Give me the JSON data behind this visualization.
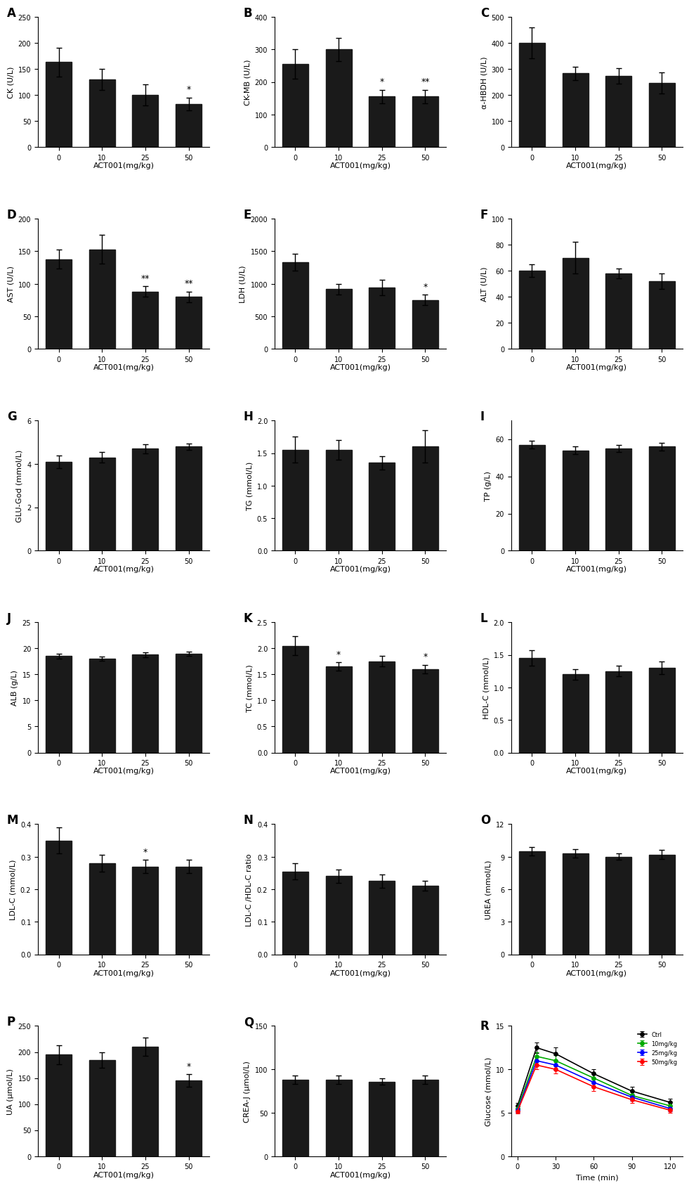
{
  "panels": {
    "A": {
      "title": "A",
      "ylabel": "CK (U/L)",
      "xlabel": "ACT001(mg/kg)",
      "categories": [
        "0",
        "10",
        "25",
        "50"
      ],
      "values": [
        163,
        130,
        100,
        83
      ],
      "errors": [
        28,
        20,
        20,
        12
      ],
      "ylim": [
        0,
        250
      ],
      "yticks": [
        0,
        50,
        100,
        150,
        200,
        250
      ],
      "sig": [
        "",
        "",
        "",
        "*"
      ]
    },
    "B": {
      "title": "B",
      "ylabel": "CK-MB (U/L)",
      "xlabel": "ACT001(mg/kg)",
      "categories": [
        "0",
        "10",
        "25",
        "50"
      ],
      "values": [
        255,
        300,
        155,
        155
      ],
      "errors": [
        45,
        35,
        20,
        20
      ],
      "ylim": [
        0,
        400
      ],
      "yticks": [
        0,
        100,
        200,
        300,
        400
      ],
      "sig": [
        "",
        "",
        "*",
        "**"
      ]
    },
    "C": {
      "title": "C",
      "ylabel": "α-HBDH (U/L)",
      "xlabel": "ACT001(mg/kg)",
      "categories": [
        "0",
        "10",
        "25",
        "50"
      ],
      "values": [
        400,
        283,
        273,
        247
      ],
      "errors": [
        60,
        25,
        30,
        40
      ],
      "ylim": [
        0,
        500
      ],
      "yticks": [
        0,
        100,
        200,
        300,
        400,
        500
      ],
      "sig": [
        "",
        "",
        "",
        ""
      ]
    },
    "D": {
      "title": "D",
      "ylabel": "AST (U/L)",
      "xlabel": "ACT001(mg/kg)",
      "categories": [
        "0",
        "10",
        "25",
        "50"
      ],
      "values": [
        138,
        153,
        88,
        80
      ],
      "errors": [
        15,
        22,
        8,
        8
      ],
      "ylim": [
        0,
        200
      ],
      "yticks": [
        0,
        50,
        100,
        150,
        200
      ],
      "sig": [
        "",
        "",
        "**",
        "**"
      ]
    },
    "E": {
      "title": "E",
      "ylabel": "LDH (U/L)",
      "xlabel": "ACT001(mg/kg)",
      "categories": [
        "0",
        "10",
        "25",
        "50"
      ],
      "values": [
        1330,
        920,
        940,
        750
      ],
      "errors": [
        130,
        80,
        120,
        80
      ],
      "ylim": [
        0,
        2000
      ],
      "yticks": [
        0,
        500,
        1000,
        1500,
        2000
      ],
      "sig": [
        "",
        "",
        "",
        "*"
      ]
    },
    "F": {
      "title": "F",
      "ylabel": "ALT (U/L)",
      "xlabel": "ACT001(mg/kg)",
      "categories": [
        "0",
        "10",
        "25",
        "50"
      ],
      "values": [
        60,
        70,
        58,
        52
      ],
      "errors": [
        5,
        12,
        4,
        6
      ],
      "ylim": [
        0,
        100
      ],
      "yticks": [
        0,
        20,
        40,
        60,
        80,
        100
      ],
      "sig": [
        "",
        "",
        "",
        ""
      ]
    },
    "G": {
      "title": "G",
      "ylabel": "GLU-God (mmol/L)",
      "xlabel": "ACT001(mg/kg)",
      "categories": [
        "0",
        "10",
        "25",
        "50"
      ],
      "values": [
        4.1,
        4.3,
        4.7,
        4.8
      ],
      "errors": [
        0.3,
        0.25,
        0.2,
        0.15
      ],
      "ylim": [
        0,
        6
      ],
      "yticks": [
        0,
        2,
        4,
        6
      ],
      "sig": [
        "",
        "",
        "",
        ""
      ]
    },
    "H": {
      "title": "H",
      "ylabel": "TG (mmol/L)",
      "xlabel": "ACT001(mg/kg)",
      "categories": [
        "0",
        "10",
        "25",
        "50"
      ],
      "values": [
        1.55,
        1.55,
        1.35,
        1.6
      ],
      "errors": [
        0.2,
        0.15,
        0.1,
        0.25
      ],
      "ylim": [
        0,
        2.0
      ],
      "yticks": [
        0,
        0.5,
        1.0,
        1.5,
        2.0
      ],
      "sig": [
        "",
        "",
        "",
        ""
      ]
    },
    "I": {
      "title": "I",
      "ylabel": "TP (g/L)",
      "xlabel": "ACT001(mg/kg)",
      "categories": [
        "0",
        "10",
        "25",
        "50"
      ],
      "values": [
        57,
        54,
        55,
        56
      ],
      "errors": [
        2,
        2,
        2,
        2
      ],
      "ylim": [
        0,
        70
      ],
      "yticks": [
        0,
        20,
        40,
        60
      ],
      "sig": [
        "",
        "",
        "",
        ""
      ]
    },
    "J": {
      "title": "J",
      "ylabel": "ALB (g/L)",
      "xlabel": "ACT001(mg/kg)",
      "categories": [
        "0",
        "10",
        "25",
        "50"
      ],
      "values": [
        18.5,
        18.0,
        18.8,
        19.0
      ],
      "errors": [
        0.5,
        0.4,
        0.5,
        0.4
      ],
      "ylim": [
        0,
        25
      ],
      "yticks": [
        0,
        5,
        10,
        15,
        20,
        25
      ],
      "sig": [
        "",
        "",
        "",
        ""
      ]
    },
    "K": {
      "title": "K",
      "ylabel": "TC (mmol/L)",
      "xlabel": "ACT001(mg/kg)",
      "categories": [
        "0",
        "10",
        "25",
        "50"
      ],
      "values": [
        2.05,
        1.65,
        1.75,
        1.6
      ],
      "errors": [
        0.18,
        0.08,
        0.1,
        0.08
      ],
      "ylim": [
        0,
        2.5
      ],
      "yticks": [
        0,
        0.5,
        1.0,
        1.5,
        2.0,
        2.5
      ],
      "sig": [
        "",
        "*",
        "",
        "*"
      ]
    },
    "L": {
      "title": "L",
      "ylabel": "HDL-C (mmol/L)",
      "xlabel": "ACT001(mg/kg)",
      "categories": [
        "0",
        "10",
        "25",
        "50"
      ],
      "values": [
        1.45,
        1.2,
        1.25,
        1.3
      ],
      "errors": [
        0.12,
        0.08,
        0.08,
        0.1
      ],
      "ylim": [
        0,
        2.0
      ],
      "yticks": [
        0,
        0.5,
        1.0,
        1.5,
        2.0
      ],
      "sig": [
        "",
        "",
        "",
        ""
      ]
    },
    "M": {
      "title": "M",
      "ylabel": "LDL-C (mmol/L)",
      "xlabel": "ACT001(mg/kg)",
      "categories": [
        "0",
        "10",
        "25",
        "50"
      ],
      "values": [
        0.35,
        0.28,
        0.27,
        0.27
      ],
      "errors": [
        0.04,
        0.025,
        0.02,
        0.02
      ],
      "ylim": [
        0,
        0.4
      ],
      "yticks": [
        0,
        0.1,
        0.2,
        0.3,
        0.4
      ],
      "sig": [
        "",
        "",
        "*",
        ""
      ]
    },
    "N": {
      "title": "N",
      "ylabel": "LDL-C /HDL-C ratio",
      "xlabel": "ACT001(mg/kg)",
      "categories": [
        "0",
        "10",
        "25",
        "50"
      ],
      "values": [
        0.255,
        0.24,
        0.225,
        0.21
      ],
      "errors": [
        0.025,
        0.02,
        0.02,
        0.015
      ],
      "ylim": [
        0,
        0.4
      ],
      "yticks": [
        0,
        0.1,
        0.2,
        0.3,
        0.4
      ],
      "sig": [
        "",
        "",
        "",
        ""
      ]
    },
    "O": {
      "title": "O",
      "ylabel": "UREA (mmol/L)",
      "xlabel": "ACT001(mg/kg)",
      "categories": [
        "0",
        "10",
        "25",
        "50"
      ],
      "values": [
        9.5,
        9.3,
        9.0,
        9.2
      ],
      "errors": [
        0.4,
        0.4,
        0.3,
        0.4
      ],
      "ylim": [
        0,
        12
      ],
      "yticks": [
        0,
        3,
        6,
        9,
        12
      ],
      "sig": [
        "",
        "",
        "",
        ""
      ]
    },
    "P": {
      "title": "P",
      "ylabel": "UA (μmol/L)",
      "xlabel": "ACT001(mg/kg)",
      "categories": [
        "0",
        "10",
        "25",
        "50"
      ],
      "values": [
        195,
        185,
        210,
        145
      ],
      "errors": [
        18,
        15,
        18,
        12
      ],
      "ylim": [
        0,
        250
      ],
      "yticks": [
        0,
        50,
        100,
        150,
        200,
        250
      ],
      "sig": [
        "",
        "",
        "",
        "*"
      ]
    },
    "Q": {
      "title": "Q",
      "ylabel": "CREA-J (μmol/L)",
      "xlabel": "ACT001(mg/kg)",
      "categories": [
        "0",
        "10",
        "25",
        "50"
      ],
      "values": [
        88,
        88,
        86,
        88
      ],
      "errors": [
        5,
        5,
        4,
        5
      ],
      "ylim": [
        0,
        150
      ],
      "yticks": [
        0,
        50,
        100,
        150
      ],
      "sig": [
        "",
        "",
        "",
        ""
      ]
    },
    "R": {
      "title": "R",
      "ylabel": "Glucose (mmol/L)",
      "xlabel": "Time (min)",
      "timepoints": [
        0,
        15,
        30,
        60,
        90,
        120
      ],
      "series": {
        "Ctrl": {
          "values": [
            5.8,
            12.5,
            11.8,
            9.5,
            7.5,
            6.2
          ],
          "errors": [
            0.3,
            0.6,
            0.7,
            0.5,
            0.5,
            0.4
          ],
          "color": "#000000",
          "marker": "o"
        },
        "10mg/kg": {
          "values": [
            5.5,
            11.5,
            11.0,
            9.0,
            7.0,
            5.8
          ],
          "errors": [
            0.3,
            0.5,
            0.6,
            0.5,
            0.4,
            0.4
          ],
          "color": "#00aa00",
          "marker": "o"
        },
        "25mg/kg": {
          "values": [
            5.3,
            11.0,
            10.5,
            8.5,
            6.8,
            5.5
          ],
          "errors": [
            0.3,
            0.5,
            0.6,
            0.5,
            0.4,
            0.3
          ],
          "color": "#0000ff",
          "marker": "o"
        },
        "50mg/kg": {
          "values": [
            5.2,
            10.5,
            10.0,
            8.0,
            6.5,
            5.3
          ],
          "errors": [
            0.3,
            0.5,
            0.5,
            0.5,
            0.4,
            0.3
          ],
          "color": "#ff0000",
          "marker": "o"
        }
      },
      "ylim": [
        0,
        15
      ],
      "yticks": [
        0,
        5,
        10,
        15
      ],
      "xlim": [
        -5,
        130
      ]
    }
  },
  "bar_color": "#1a1a1a",
  "bar_width": 0.6,
  "sig_fontsize": 9,
  "label_fontsize": 8,
  "tick_fontsize": 7,
  "panel_label_fontsize": 12
}
